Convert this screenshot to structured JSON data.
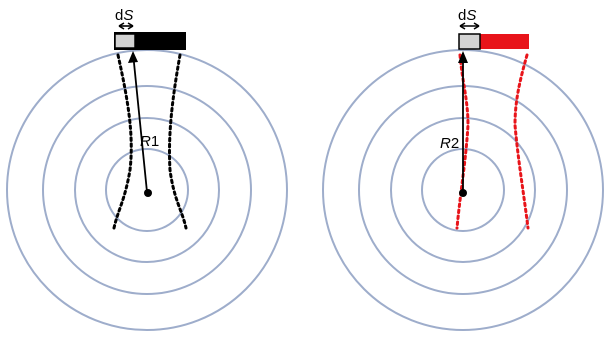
{
  "colors": {
    "ring": "#9eadcb",
    "left_accent": "#000000",
    "right_accent": "#e8141a",
    "detector_element": "#d3d3d3",
    "arrow": "#000000"
  },
  "panels": [
    {
      "id": "left",
      "ds_label": {
        "prefix": "d",
        "symbol": "S"
      },
      "radius_label": {
        "symbol": "R",
        "index": "1"
      },
      "accent": "#000000"
    },
    {
      "id": "right",
      "ds_label": {
        "prefix": "d",
        "symbol": "S"
      },
      "radius_label": {
        "symbol": "R",
        "index": "2"
      },
      "accent": "#e8141a"
    }
  ]
}
